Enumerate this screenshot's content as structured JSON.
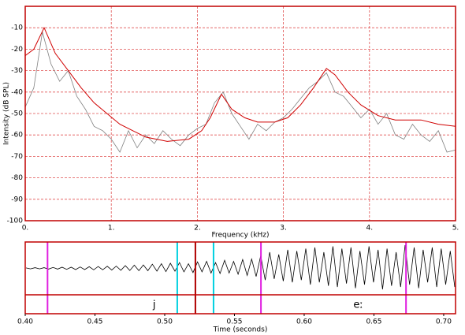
{
  "chart_data": [
    {
      "type": "line",
      "ylabel": "Intensity (dB SPL)",
      "xlabel": "Frequency (kHz)",
      "xlim": [
        0,
        5
      ],
      "ylim": [
        -100,
        0
      ],
      "xticks": [
        {
          "value": 0,
          "label": "0."
        },
        {
          "value": 1,
          "label": "1."
        },
        {
          "value": 2,
          "label": "2."
        },
        {
          "value": 3,
          "label": "3."
        },
        {
          "value": 4,
          "label": "4."
        },
        {
          "value": 5,
          "label": "5."
        }
      ],
      "yticks": [
        -100,
        -90,
        -80,
        -70,
        -60,
        -50,
        -40,
        -30,
        -20,
        -10
      ],
      "grid": true,
      "frame_color": "#c00000",
      "grid_color": "#e05050",
      "series": [
        {
          "color": "#808080",
          "x": [
            0,
            0.1,
            0.2,
            0.3,
            0.4,
            0.5,
            0.6,
            0.7,
            0.8,
            0.9,
            1.0,
            1.1,
            1.2,
            1.3,
            1.4,
            1.5,
            1.6,
            1.7,
            1.8,
            1.9,
            2.0,
            2.1,
            2.2,
            2.3,
            2.4,
            2.5,
            2.6,
            2.7,
            2.8,
            2.9,
            3.0,
            3.1,
            3.2,
            3.3,
            3.4,
            3.5,
            3.6,
            3.7,
            3.8,
            3.9,
            4.0,
            4.1,
            4.2,
            4.3,
            4.4,
            4.5,
            4.6,
            4.7,
            4.8,
            4.9,
            5.0
          ],
          "values": [
            -47,
            -38,
            -12,
            -27,
            -35,
            -30,
            -42,
            -48,
            -56,
            -58,
            -62,
            -68,
            -58,
            -66,
            -60,
            -64,
            -58,
            -62,
            -65,
            -60,
            -57,
            -55,
            -45,
            -40,
            -50,
            -56,
            -62,
            -55,
            -58,
            -54,
            -52,
            -48,
            -43,
            -38,
            -35,
            -31,
            -40,
            -42,
            -47,
            -52,
            -48,
            -55,
            -50,
            -60,
            -62,
            -55,
            -60,
            -63,
            -58,
            -68,
            -67
          ]
        },
        {
          "color": "#d00000",
          "x": [
            0,
            0.1,
            0.22,
            0.35,
            0.5,
            0.65,
            0.8,
            0.95,
            1.1,
            1.25,
            1.4,
            1.65,
            1.9,
            2.05,
            2.15,
            2.28,
            2.4,
            2.55,
            2.7,
            2.9,
            3.05,
            3.2,
            3.35,
            3.5,
            3.6,
            3.75,
            3.9,
            4.1,
            4.3,
            4.6,
            4.8,
            5.0
          ],
          "values": [
            -23,
            -20,
            -10,
            -22,
            -30,
            -38,
            -45,
            -50,
            -55,
            -58,
            -61,
            -63,
            -62,
            -58,
            -52,
            -41,
            -48,
            -52,
            -54,
            -54,
            -52,
            -46,
            -38,
            -29,
            -32,
            -40,
            -46,
            -51,
            -53,
            -53,
            -55,
            -56
          ]
        }
      ]
    },
    {
      "type": "waveform",
      "xlabel": "Time (seconds)",
      "xlim": [
        0.4,
        0.7085
      ],
      "ylim": [
        -1,
        1
      ],
      "xticks": [
        {
          "value": 0.4,
          "label": "0.40"
        },
        0.45,
        {
          "value": 0.5,
          "label": "0.50"
        },
        0.55,
        {
          "value": 0.6,
          "label": "0.60"
        },
        0.65,
        {
          "value": 0.7,
          "label": "0.70"
        }
      ],
      "frame_color": "#c00000",
      "color": "#000000",
      "values": [
        0.02,
        -0.02,
        0.03,
        -0.02,
        0.03,
        -0.03,
        0.04,
        -0.03,
        0.05,
        -0.04,
        0.05,
        -0.05,
        0.06,
        -0.05,
        0.07,
        -0.06,
        0.08,
        -0.06,
        0.09,
        -0.07,
        0.1,
        -0.08,
        0.12,
        -0.09,
        0.14,
        -0.1,
        0.15,
        -0.1,
        0.18,
        -0.12,
        0.2,
        -0.14,
        0.22,
        -0.12,
        0.25,
        -0.15,
        0.2,
        -0.18,
        0.28,
        -0.15,
        0.3,
        -0.2,
        0.25,
        -0.22,
        0.35,
        -0.2,
        0.3,
        -0.25,
        0.38,
        -0.3,
        0.4,
        -0.35,
        0.55,
        -0.5,
        0.7,
        -0.45,
        0.6,
        -0.55,
        0.8,
        -0.6,
        0.75,
        -0.5,
        0.85,
        -0.7,
        0.9,
        -0.6,
        0.7,
        -0.75,
        0.95,
        -0.8,
        0.85,
        -0.65,
        0.9,
        -0.85,
        0.75,
        -0.7,
        0.95,
        -0.6,
        0.8,
        -0.9,
        0.85,
        -0.75,
        0.7,
        -0.8,
        1.0,
        -0.7,
        0.9,
        -0.85,
        0.8,
        -0.6,
        0.9,
        -0.8,
        0.85,
        -0.7,
        0.75,
        -0.8
      ],
      "cursors": [
        {
          "time": 0.416,
          "color": "#e020e0"
        },
        {
          "time": 0.509,
          "color": "#00d0e0"
        },
        {
          "time": 0.522,
          "color": "#b00000"
        },
        {
          "time": 0.535,
          "color": "#00d0e0"
        },
        {
          "time": 0.569,
          "color": "#e020e0"
        },
        {
          "time": 0.673,
          "color": "#e020e0"
        }
      ],
      "tier": [
        {
          "label": "j",
          "start": 0.416,
          "end": 0.569
        },
        {
          "label": "eː",
          "start": 0.569,
          "end": 0.7085
        }
      ]
    }
  ]
}
